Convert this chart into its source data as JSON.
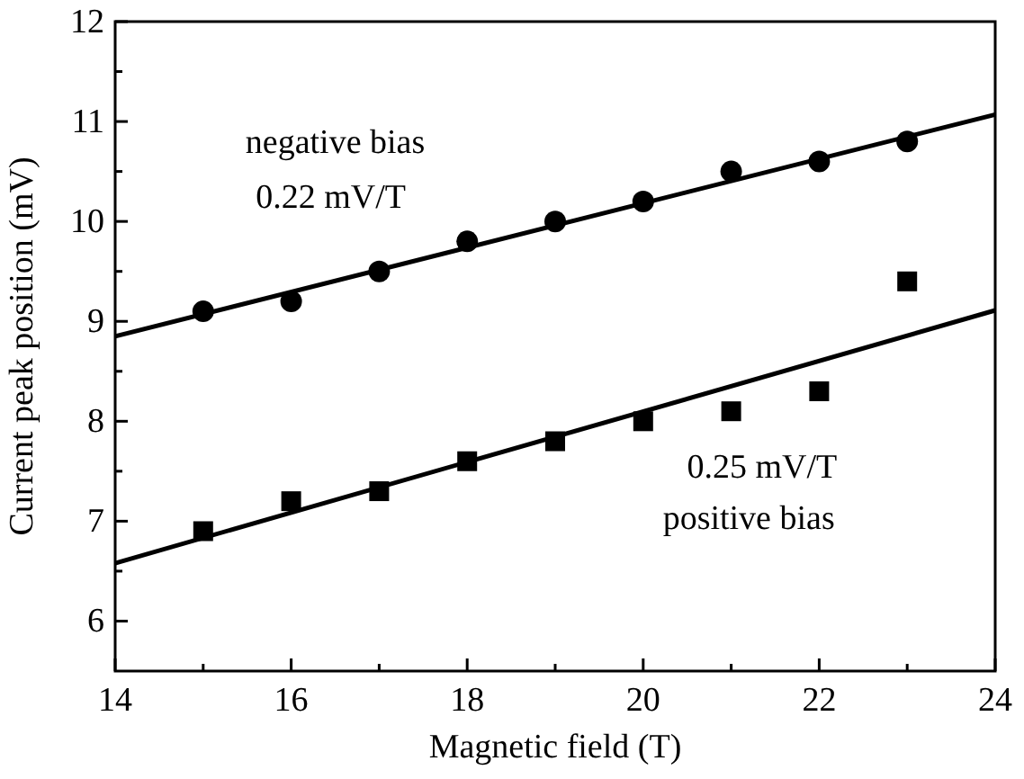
{
  "chart_data": {
    "type": "scatter",
    "xlabel": "Magnetic field (T)",
    "ylabel": "Current peak position (mV)",
    "xlim": [
      14,
      24
    ],
    "ylim": [
      5.5,
      12
    ],
    "xticks": [
      14,
      {
        "value": 15,
        "label": null
      },
      16,
      {
        "value": 17,
        "label": null
      },
      18,
      {
        "value": 19,
        "label": null
      },
      20,
      {
        "value": 21,
        "label": null
      },
      22,
      {
        "value": 23,
        "label": null
      },
      24
    ],
    "yticks": [
      6,
      {
        "value": 6.5,
        "label": null
      },
      7,
      {
        "value": 7.5,
        "label": null
      },
      8,
      {
        "value": 8.5,
        "label": null
      },
      9,
      {
        "value": 9.5,
        "label": null
      },
      10,
      {
        "value": 10.5,
        "label": null
      },
      11,
      {
        "value": 11.5,
        "label": null
      },
      12
    ],
    "grid": false,
    "series": [
      {
        "marker": "circle",
        "color": "#000000",
        "x": [
          15,
          16,
          17,
          18,
          19,
          20,
          21,
          22,
          23
        ],
        "values": [
          9.1,
          9.2,
          9.5,
          9.8,
          10.0,
          10.2,
          10.5,
          10.6,
          10.8
        ]
      },
      {
        "marker": "square",
        "color": "#000000",
        "x": [
          15,
          16,
          17,
          18,
          19,
          20,
          21,
          22,
          23
        ],
        "values": [
          6.9,
          7.2,
          7.3,
          7.6,
          7.8,
          8.0,
          8.1,
          8.3,
          9.4
        ]
      },
      {
        "type": "line",
        "line_style": "solid",
        "color": "#000000",
        "x": [
          14,
          24
        ],
        "values": [
          8.85,
          11.07
        ]
      },
      {
        "type": "line",
        "line_style": "solid",
        "color": "#000000",
        "x": [
          14,
          24
        ],
        "values": [
          6.58,
          9.11
        ]
      }
    ],
    "annotations": [
      "negative bias",
      "0.22 mV/T",
      "0.25 mV/T",
      "positive bias"
    ]
  }
}
